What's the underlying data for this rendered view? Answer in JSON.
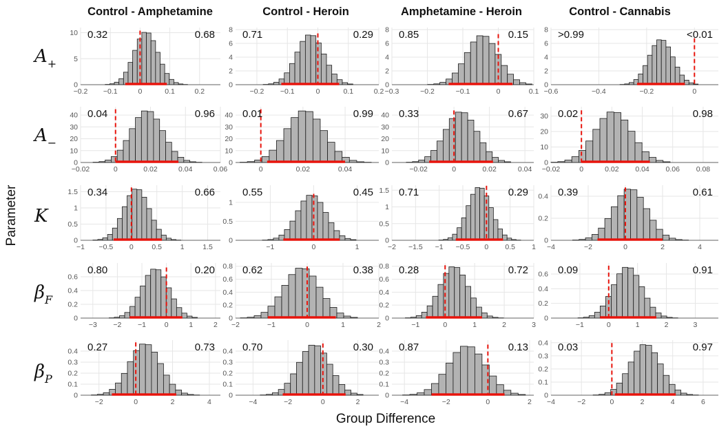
{
  "figure": {
    "xlabel": "Group Difference",
    "ylabel": "Parameter",
    "column_titles": [
      "Control - Amphetamine",
      "Control - Heroin",
      "Amphetamine - Heroin",
      "Control - Cannabis"
    ],
    "row_parameters": [
      {
        "symbol": "A",
        "subscript": "+"
      },
      {
        "symbol": "A",
        "subscript": "−"
      },
      {
        "symbol": "K",
        "subscript": ""
      },
      {
        "symbol": "β",
        "subscript": "F"
      },
      {
        "symbol": "β",
        "subscript": "P"
      }
    ]
  },
  "colors": {
    "bar_fill": "#b3b3b3",
    "bar_stroke": "#1a1a1a",
    "reference_line": "#e8140c",
    "interval": "#e8140c",
    "grid": "#e6e6e6"
  },
  "chart_data": [
    {
      "type": "bar",
      "row": 0,
      "col": 0,
      "xlim": [
        -0.2,
        0.27
      ],
      "xticks": [
        -0.2,
        -0.1,
        0.0,
        0.1,
        0.2
      ],
      "ylim": [
        0,
        11
      ],
      "yticks": [
        0,
        5,
        10
      ],
      "mean": 0.02,
      "sd": 0.04,
      "peak": 10.2,
      "interval": [
        -0.05,
        0.09
      ],
      "prob_left": "0.32",
      "prob_right": "0.68"
    },
    {
      "type": "bar",
      "row": 0,
      "col": 1,
      "xlim": [
        -0.27,
        0.2
      ],
      "xticks": [
        -0.2,
        -0.1,
        0.0,
        0.1,
        0.2
      ],
      "ylim": [
        0,
        8.3
      ],
      "yticks": [
        0,
        2,
        4,
        6,
        8
      ],
      "mean": -0.025,
      "sd": 0.045,
      "peak": 7.3,
      "interval": [
        -0.12,
        0.07
      ],
      "prob_left": "0.71",
      "prob_right": "0.29"
    },
    {
      "type": "bar",
      "row": 0,
      "col": 2,
      "xlim": [
        -0.3,
        0.1
      ],
      "xticks": [
        -0.3,
        -0.2,
        -0.1,
        0.0,
        0.1
      ],
      "ylim": [
        0,
        8.3
      ],
      "yticks": [
        0,
        2,
        4,
        6,
        8
      ],
      "mean": -0.045,
      "sd": 0.045,
      "peak": 7.2,
      "interval": [
        -0.14,
        0.04
      ],
      "prob_left": "0.85",
      "prob_right": "0.15"
    },
    {
      "type": "bar",
      "row": 0,
      "col": 3,
      "xlim": [
        -0.6,
        0.1
      ],
      "xticks": [
        -0.6,
        -0.4,
        -0.2,
        0.0
      ],
      "ylim": [
        0,
        8.3
      ],
      "yticks": [
        0,
        2,
        4,
        6,
        8
      ],
      "mean": -0.14,
      "sd": 0.05,
      "peak": 6.6,
      "interval": [
        -0.24,
        -0.04
      ],
      "prob_left": ">0.99",
      "prob_right": "<0.01"
    },
    {
      "type": "bar",
      "row": 1,
      "col": 0,
      "xlim": [
        -0.02,
        0.06
      ],
      "xticks": [
        -0.02,
        0.0,
        0.02,
        0.04,
        0.06
      ],
      "ylim": [
        0,
        47
      ],
      "yticks": [
        0,
        10,
        20,
        30,
        40
      ],
      "mean": 0.018,
      "sd": 0.009,
      "peak": 44,
      "interval": [
        0.0,
        0.036
      ],
      "prob_left": "0.04",
      "prob_right": "0.96"
    },
    {
      "type": "bar",
      "row": 1,
      "col": 1,
      "xlim": [
        -0.012,
        0.056
      ],
      "xticks": [
        0.0,
        0.02,
        0.04
      ],
      "ylim": [
        0,
        47
      ],
      "yticks": [
        0,
        10,
        20,
        30,
        40
      ],
      "mean": 0.021,
      "sd": 0.009,
      "peak": 44,
      "interval": [
        0.003,
        0.04
      ],
      "prob_left": "0.01",
      "prob_right": "0.99"
    },
    {
      "type": "bar",
      "row": 1,
      "col": 2,
      "xlim": [
        -0.035,
        0.045
      ],
      "xticks": [
        -0.02,
        0.0,
        0.02,
        0.04
      ],
      "ylim": [
        0,
        47
      ],
      "yticks": [
        0,
        10,
        20,
        30,
        40
      ],
      "mean": 0.004,
      "sd": 0.009,
      "peak": 43,
      "interval": [
        -0.014,
        0.022
      ],
      "prob_left": "0.33",
      "prob_right": "0.67"
    },
    {
      "type": "bar",
      "row": 1,
      "col": 3,
      "xlim": [
        -0.02,
        0.09
      ],
      "xticks": [
        -0.02,
        0.0,
        0.02,
        0.04,
        0.06,
        0.08
      ],
      "ylim": [
        0,
        36
      ],
      "yticks": [
        0,
        10,
        20,
        30
      ],
      "mean": 0.021,
      "sd": 0.012,
      "peak": 33,
      "interval": [
        0.0,
        0.045
      ],
      "prob_left": "0.02",
      "prob_right": "0.98"
    },
    {
      "type": "bar",
      "row": 2,
      "col": 0,
      "xlim": [
        -1.0,
        1.75
      ],
      "xticks": [
        -1.0,
        -0.5,
        0.0,
        0.5,
        1.0,
        1.5
      ],
      "ylim": [
        0,
        1.7
      ],
      "yticks": [
        0.0,
        0.5,
        1.0,
        1.5
      ],
      "mean": 0.1,
      "sd": 0.25,
      "peak": 1.6,
      "interval": [
        -0.35,
        0.6
      ],
      "prob_left": "0.34",
      "prob_right": "0.66"
    },
    {
      "type": "bar",
      "row": 2,
      "col": 1,
      "xlim": [
        -1.8,
        1.5
      ],
      "xticks": [
        -1,
        0,
        1
      ],
      "ylim": [
        0,
        1.45
      ],
      "yticks": [
        0.0,
        0.5,
        1.0
      ],
      "mean": -0.05,
      "sd": 0.33,
      "peak": 1.2,
      "interval": [
        -0.7,
        0.6
      ],
      "prob_left": "0.55",
      "prob_right": "0.45"
    },
    {
      "type": "bar",
      "row": 2,
      "col": 2,
      "xlim": [
        -2.0,
        1.0
      ],
      "xticks": [
        -2.0,
        -1.5,
        -1.0,
        -0.5,
        0.0,
        0.5,
        1.0
      ],
      "ylim": [
        0,
        1.65
      ],
      "yticks": [
        0.0,
        0.5,
        1.0,
        1.5
      ],
      "mean": -0.15,
      "sd": 0.25,
      "peak": 1.6,
      "interval": [
        -0.65,
        0.35
      ],
      "prob_left": "0.71",
      "prob_right": "0.29"
    },
    {
      "type": "bar",
      "row": 2,
      "col": 3,
      "xlim": [
        -4.0,
        5.0
      ],
      "xticks": [
        -4,
        -2,
        0,
        2,
        4
      ],
      "ylim": [
        0,
        0.5
      ],
      "yticks": [
        0.0,
        0.2,
        0.4
      ],
      "mean": 0.25,
      "sd": 0.9,
      "peak": 0.47,
      "interval": [
        -1.5,
        2.0
      ],
      "prob_left": "0.39",
      "prob_right": "0.61"
    },
    {
      "type": "bar",
      "row": 3,
      "col": 0,
      "xlim": [
        -3.5,
        2.2
      ],
      "xticks": [
        -3,
        -2,
        -1,
        0,
        1,
        2
      ],
      "ylim": [
        0,
        0.8
      ],
      "yticks": [
        0.0,
        0.2,
        0.4,
        0.6
      ],
      "mean": -0.45,
      "sd": 0.55,
      "peak": 0.72,
      "interval": [
        -1.5,
        0.65
      ],
      "prob_left": "0.80",
      "prob_right": "0.20"
    },
    {
      "type": "bar",
      "row": 3,
      "col": 1,
      "xlim": [
        -2.0,
        2.0
      ],
      "xticks": [
        -2,
        -1,
        0,
        1,
        2
      ],
      "ylim": [
        0,
        0.85
      ],
      "yticks": [
        0.0,
        0.2,
        0.4,
        0.6,
        0.8
      ],
      "mean": -0.15,
      "sd": 0.5,
      "peak": 0.78,
      "interval": [
        -1.1,
        0.8
      ],
      "prob_left": "0.62",
      "prob_right": "0.38"
    },
    {
      "type": "bar",
      "row": 3,
      "col": 2,
      "xlim": [
        -1.8,
        3.0
      ],
      "xticks": [
        -1,
        0,
        1,
        2,
        3
      ],
      "ylim": [
        0,
        0.85
      ],
      "yticks": [
        0.0,
        0.2,
        0.4,
        0.6,
        0.8
      ],
      "mean": 0.3,
      "sd": 0.48,
      "peak": 0.8,
      "interval": [
        -0.65,
        1.25
      ],
      "prob_left": "0.28",
      "prob_right": "0.72"
    },
    {
      "type": "bar",
      "row": 3,
      "col": 3,
      "xlim": [
        -2.0,
        3.8
      ],
      "xticks": [
        -1,
        0,
        1,
        2,
        3
      ],
      "ylim": [
        0,
        0.75
      ],
      "yticks": [
        0.0,
        0.2,
        0.4,
        0.6
      ],
      "mean": 0.65,
      "sd": 0.5,
      "peak": 0.7,
      "interval": [
        -0.3,
        1.65
      ],
      "prob_left": "0.09",
      "prob_right": "0.91"
    },
    {
      "type": "bar",
      "row": 4,
      "col": 0,
      "xlim": [
        -3.0,
        4.6
      ],
      "xticks": [
        -2,
        0,
        2,
        4
      ],
      "ylim": [
        0,
        0.5
      ],
      "yticks": [
        0.0,
        0.1,
        0.2,
        0.3,
        0.4
      ],
      "mean": 0.5,
      "sd": 0.85,
      "peak": 0.47,
      "interval": [
        -1.3,
        2.2
      ],
      "prob_left": "0.27",
      "prob_right": "0.73"
    },
    {
      "type": "bar",
      "row": 4,
      "col": 1,
      "xlim": [
        -5.0,
        3.2
      ],
      "xticks": [
        -4,
        -2,
        0,
        2
      ],
      "ylim": [
        0,
        0.5
      ],
      "yticks": [
        0.0,
        0.1,
        0.2,
        0.3,
        0.4
      ],
      "mean": -0.5,
      "sd": 0.9,
      "peak": 0.46,
      "interval": [
        -2.3,
        1.3
      ],
      "prob_left": "0.70",
      "prob_right": "0.30"
    },
    {
      "type": "bar",
      "row": 4,
      "col": 2,
      "xlim": [
        -4.6,
        2.2
      ],
      "xticks": [
        -4,
        -2,
        0,
        2
      ],
      "ylim": [
        0,
        0.5
      ],
      "yticks": [
        0.0,
        0.1,
        0.2,
        0.3,
        0.4
      ],
      "mean": -1.0,
      "sd": 0.9,
      "peak": 0.45,
      "interval": [
        -2.7,
        0.8
      ],
      "prob_left": "0.87",
      "prob_right": "0.13"
    },
    {
      "type": "bar",
      "row": 4,
      "col": 3,
      "xlim": [
        -4.0,
        7.0
      ],
      "xticks": [
        -4,
        -2,
        0,
        2,
        4,
        6
      ],
      "ylim": [
        0,
        0.42
      ],
      "yticks": [
        0.0,
        0.1,
        0.2,
        0.3,
        0.4
      ],
      "mean": 2.2,
      "sd": 1.0,
      "peak": 0.39,
      "interval": [
        0.2,
        4.2
      ],
      "prob_left": "0.03",
      "prob_right": "0.97"
    }
  ]
}
